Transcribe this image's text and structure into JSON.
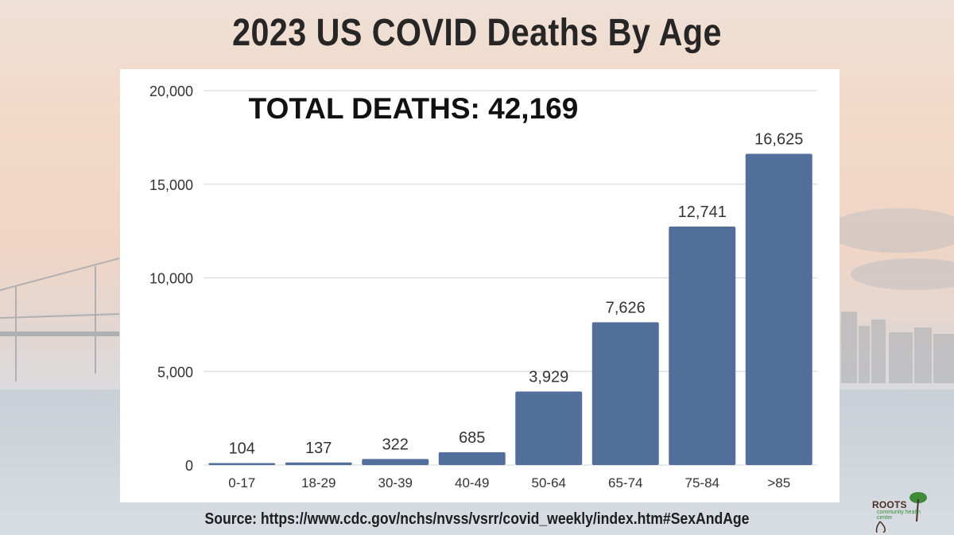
{
  "page": {
    "title": "2023 US COVID Deaths By Age",
    "source": "Source: https://www.cdc.gov/nchs/nvss/vsrr/covid_weekly/index.htm#SexAndAge",
    "logo_text": "ROOTS",
    "logo_subtext": "community health center"
  },
  "colors": {
    "bar": "#526f9c",
    "grid": "#d6d6d6",
    "tick_text": "#333333",
    "annotation": "#111111"
  },
  "chart_data": {
    "type": "bar",
    "title": "2023 US COVID Deaths By Age",
    "annotation": "TOTAL DEATHS: 42,169",
    "categories": [
      "0-17",
      "18-29",
      "30-39",
      "40-49",
      "50-64",
      "65-74",
      "75-84",
      ">85"
    ],
    "values": [
      104,
      137,
      322,
      685,
      3929,
      7626,
      12741,
      16625
    ],
    "value_labels": [
      "104",
      "137",
      "322",
      "685",
      "3,929",
      "7,626",
      "12,741",
      "16,625"
    ],
    "ylim": [
      0,
      20000
    ],
    "yticks": [
      0,
      5000,
      10000,
      15000,
      20000
    ],
    "ytick_labels": [
      "0",
      "5,000",
      "10,000",
      "15,000",
      "20,000"
    ],
    "grid": true,
    "legend": "none",
    "xlabel": "",
    "ylabel": ""
  }
}
